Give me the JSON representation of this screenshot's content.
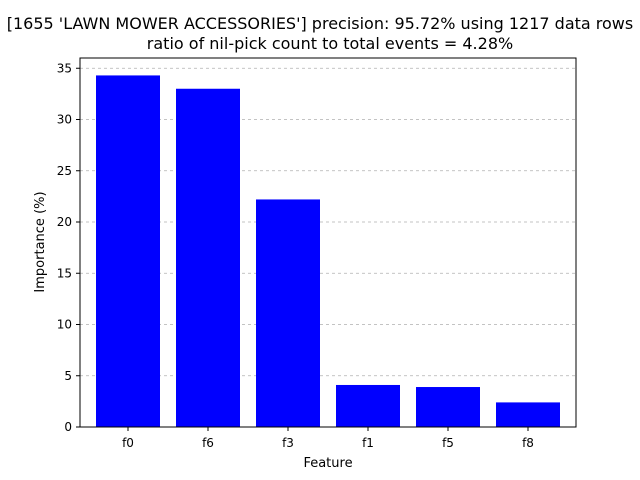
{
  "chart_data": {
    "type": "bar",
    "title": "[1655 'LAWN MOWER ACCESSORIES'] precision: 95.72% using 1217 data rows",
    "subtitle": "ratio of nil-pick count to total events = 4.28%",
    "xlabel": "Feature",
    "ylabel": "Importance (%)",
    "categories": [
      "f0",
      "f6",
      "f3",
      "f1",
      "f5",
      "f8"
    ],
    "values": [
      34.3,
      33.0,
      22.2,
      4.1,
      3.9,
      2.4
    ],
    "ylim": [
      0,
      36
    ],
    "yticks": [
      0,
      5,
      10,
      15,
      20,
      25,
      30,
      35
    ],
    "bar_color": "#0000ff",
    "grid": "y-dashed",
    "legend": "none"
  }
}
